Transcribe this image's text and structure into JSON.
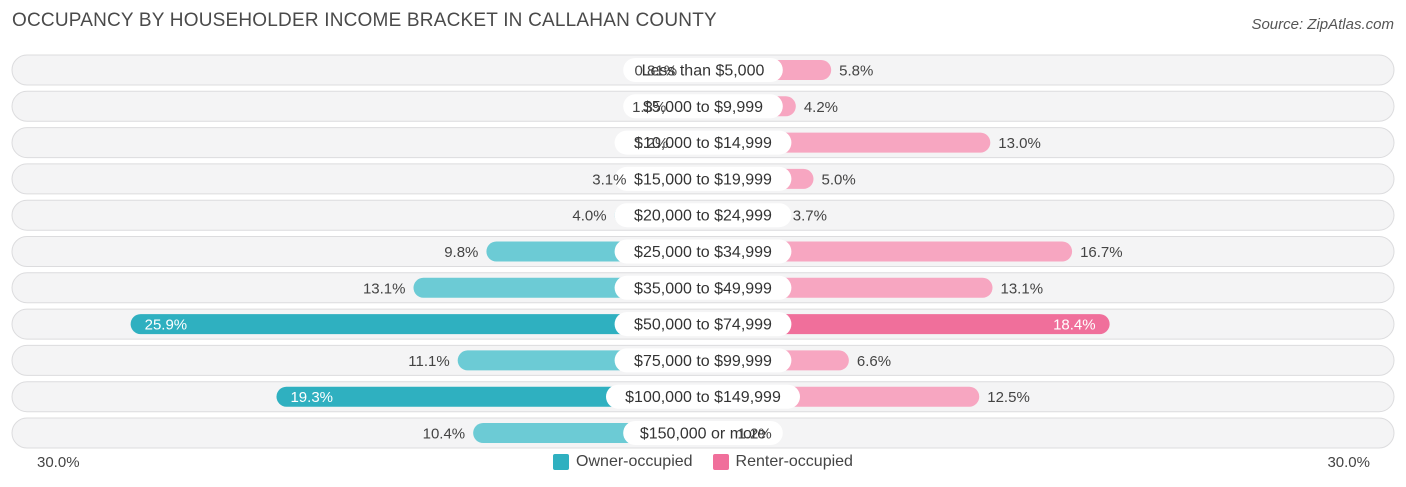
{
  "title": "OCCUPANCY BY HOUSEHOLDER INCOME BRACKET IN CALLAHAN COUNTY",
  "source": "Source: ZipAtlas.com",
  "colors": {
    "owner": "#6ccbd5",
    "owner_strong": "#2fb0c0",
    "renter": "#f7a6c1",
    "renter_strong": "#f06f9b"
  },
  "legend": {
    "owner_label": "Owner-occupied",
    "renter_label": "Renter-occupied"
  },
  "chart_data": {
    "type": "bar",
    "orientation": "horizontal-diverging",
    "title": "OCCUPANCY BY HOUSEHOLDER INCOME BRACKET IN CALLAHAN COUNTY",
    "xlim": [
      -30,
      30
    ],
    "axis_left_label": "30.0%",
    "axis_right_label": "30.0%",
    "categories": [
      "Less than $5,000",
      "$5,000 to $9,999",
      "$10,000 to $14,999",
      "$15,000 to $19,999",
      "$20,000 to $24,999",
      "$25,000 to $34,999",
      "$35,000 to $49,999",
      "$50,000 to $74,999",
      "$75,000 to $99,999",
      "$100,000 to $149,999",
      "$150,000 or more"
    ],
    "series": [
      {
        "name": "Owner-occupied",
        "values": [
          0.81,
          1.3,
          1.2,
          3.1,
          4.0,
          9.8,
          13.1,
          25.9,
          11.1,
          19.3,
          10.4
        ],
        "labels": [
          "0.81%",
          "1.3%",
          "1.2%",
          "3.1%",
          "4.0%",
          "9.8%",
          "13.1%",
          "25.9%",
          "11.1%",
          "19.3%",
          "10.4%"
        ]
      },
      {
        "name": "Renter-occupied",
        "values": [
          5.8,
          4.2,
          13.0,
          5.0,
          3.7,
          16.7,
          13.1,
          18.4,
          6.6,
          12.5,
          1.2
        ],
        "labels": [
          "5.8%",
          "4.2%",
          "13.0%",
          "5.0%",
          "3.7%",
          "16.7%",
          "13.1%",
          "18.4%",
          "6.6%",
          "12.5%",
          "1.2%"
        ]
      }
    ],
    "legend_position": "bottom-center"
  }
}
